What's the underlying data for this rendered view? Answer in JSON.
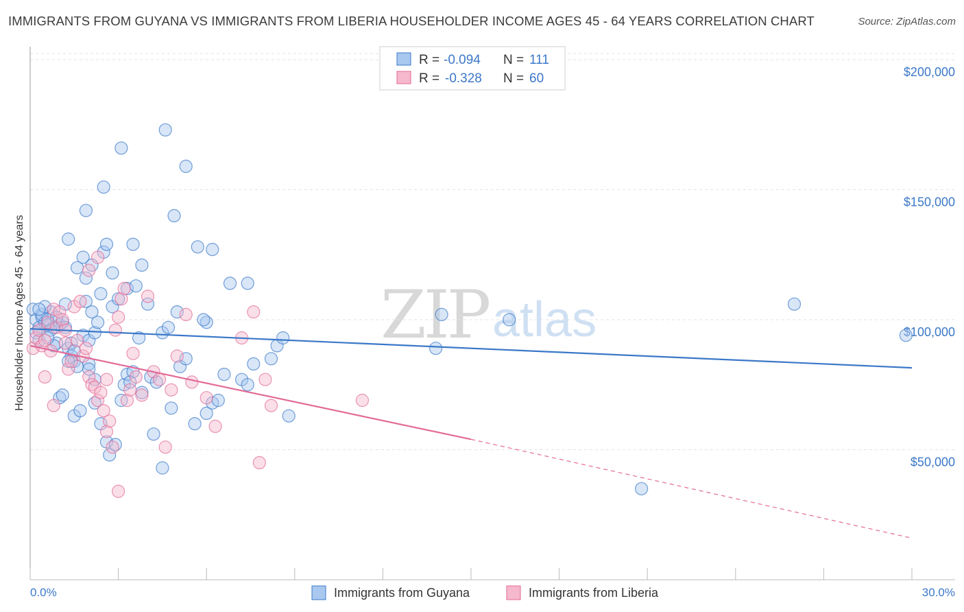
{
  "title": "IMMIGRANTS FROM GUYANA VS IMMIGRANTS FROM LIBERIA HOUSEHOLDER INCOME AGES 45 - 64 YEARS CORRELATION CHART",
  "source": "Source: ZipAtlas.com",
  "watermark": {
    "zip": "ZIP",
    "atlas": "atlas"
  },
  "colors": {
    "blue": "#3b78c8",
    "blue_fill": "#a9c8ef",
    "pink": "#e36a97",
    "pink_fill": "#f5b8cd",
    "grid": "#e3e3e3"
  },
  "legend": {
    "rows": [
      {
        "r_label": "R =",
        "r_value": "-0.094",
        "n_label": "N =",
        "n_value": "111"
      },
      {
        "r_label": "R =",
        "r_value": "-0.328",
        "n_label": "N =",
        "n_value": "60"
      }
    ]
  },
  "chart_data": {
    "type": "scatter",
    "title": "IMMIGRANTS FROM GUYANA VS IMMIGRANTS FROM LIBERIA HOUSEHOLDER INCOME AGES 45 - 64 YEARS CORRELATION CHART",
    "xlabel": "",
    "ylabel": "Householder Income Ages 45 - 64 years",
    "xlim": [
      0,
      30
    ],
    "ylim": [
      0,
      205000
    ],
    "x_tick_labels": [
      "0.0%",
      "30.0%"
    ],
    "y_ticks": [
      50000,
      100000,
      150000,
      200000
    ],
    "y_tick_labels": [
      "$50,000",
      "$100,000",
      "$150,000",
      "$200,000"
    ],
    "series": [
      {
        "name": "Immigrants from Guyana",
        "color": "#3b78c8",
        "r": -0.094,
        "n": 111,
        "trend": {
          "x": [
            0,
            30
          ],
          "y": [
            96500,
            81500
          ]
        },
        "points": [
          [
            0.1,
            104000
          ],
          [
            0.2,
            100000
          ],
          [
            0.3,
            97000
          ],
          [
            0.4,
            101000
          ],
          [
            0.5,
            99000
          ],
          [
            0.2,
            95000
          ],
          [
            0.3,
            92000
          ],
          [
            0.6,
            98000
          ],
          [
            0.7,
            103000
          ],
          [
            0.8,
            97000
          ],
          [
            0.4,
            102000
          ],
          [
            0.5,
            105000
          ],
          [
            0.6,
            100000
          ],
          [
            0.9,
            91000
          ],
          [
            1.0,
            98000
          ],
          [
            0.7,
            96000
          ],
          [
            0.8,
            90000
          ],
          [
            0.3,
            104000
          ],
          [
            1.1,
            99000
          ],
          [
            1.2,
            106000
          ],
          [
            1.3,
            89000
          ],
          [
            1.4,
            86000
          ],
          [
            1.5,
            84000
          ],
          [
            1.6,
            82000
          ],
          [
            1.8,
            94000
          ],
          [
            2.0,
            92000
          ],
          [
            2.2,
            95000
          ],
          [
            1.9,
            107000
          ],
          [
            2.1,
            103000
          ],
          [
            2.4,
            110000
          ],
          [
            2.8,
            105000
          ],
          [
            3.0,
            108000
          ],
          [
            3.3,
            112000
          ],
          [
            3.6,
            113000
          ],
          [
            4.0,
            106000
          ],
          [
            4.5,
            95000
          ],
          [
            5.0,
            103000
          ],
          [
            6.0,
            99000
          ],
          [
            6.8,
            114000
          ],
          [
            7.4,
            114000
          ],
          [
            1.0,
            70000
          ],
          [
            1.1,
            71000
          ],
          [
            1.3,
            84000
          ],
          [
            1.4,
            91000
          ],
          [
            1.5,
            63000
          ],
          [
            1.7,
            65000
          ],
          [
            2.0,
            83000
          ],
          [
            2.2,
            68000
          ],
          [
            2.4,
            60000
          ],
          [
            2.6,
            53000
          ],
          [
            2.7,
            48000
          ],
          [
            2.9,
            52000
          ],
          [
            3.1,
            69000
          ],
          [
            3.2,
            75000
          ],
          [
            3.3,
            79000
          ],
          [
            3.5,
            80000
          ],
          [
            3.7,
            93000
          ],
          [
            3.8,
            72000
          ],
          [
            4.1,
            78000
          ],
          [
            4.2,
            56000
          ],
          [
            4.3,
            76000
          ],
          [
            4.5,
            43000
          ],
          [
            4.8,
            66000
          ],
          [
            5.1,
            82000
          ],
          [
            5.3,
            85000
          ],
          [
            5.6,
            60000
          ],
          [
            6.0,
            64000
          ],
          [
            6.2,
            68000
          ],
          [
            6.4,
            69000
          ],
          [
            6.6,
            79000
          ],
          [
            7.2,
            77000
          ],
          [
            7.4,
            75000
          ],
          [
            7.6,
            83000
          ],
          [
            8.2,
            85000
          ],
          [
            8.4,
            90000
          ],
          [
            8.6,
            93000
          ],
          [
            8.8,
            63000
          ],
          [
            1.9,
            116000
          ],
          [
            1.6,
            120000
          ],
          [
            1.8,
            124000
          ],
          [
            2.1,
            121000
          ],
          [
            2.5,
            126000
          ],
          [
            2.6,
            129000
          ],
          [
            2.8,
            118000
          ],
          [
            3.5,
            129000
          ],
          [
            3.8,
            121000
          ],
          [
            5.7,
            128000
          ],
          [
            6.2,
            127000
          ],
          [
            1.3,
            131000
          ],
          [
            1.9,
            142000
          ],
          [
            2.5,
            151000
          ],
          [
            3.1,
            166000
          ],
          [
            4.6,
            173000
          ],
          [
            5.3,
            159000
          ],
          [
            4.9,
            140000
          ],
          [
            14.0,
            102000
          ],
          [
            16.3,
            100000
          ],
          [
            26.0,
            106000
          ],
          [
            29.8,
            94000
          ],
          [
            13.8,
            89000
          ],
          [
            20.8,
            35000
          ],
          [
            0.9,
            101000
          ],
          [
            1.2,
            97000
          ],
          [
            0.6,
            93000
          ],
          [
            2.3,
            99000
          ],
          [
            4.7,
            97000
          ],
          [
            1.5,
            88000
          ],
          [
            3.4,
            76000
          ],
          [
            2.2,
            77000
          ],
          [
            2.0,
            81000
          ],
          [
            5.9,
            100000
          ]
        ]
      },
      {
        "name": "Immigrants from Liberia",
        "color": "#e36a97",
        "r": -0.328,
        "n": 60,
        "trend": {
          "x": [
            0,
            15
          ],
          "y": [
            90000,
            54000
          ]
        },
        "trend_dashed": {
          "x": [
            15,
            30
          ],
          "y": [
            54000,
            16000
          ]
        },
        "points": [
          [
            0.1,
            89000
          ],
          [
            0.2,
            93000
          ],
          [
            0.3,
            96000
          ],
          [
            0.4,
            90000
          ],
          [
            0.5,
            92000
          ],
          [
            0.6,
            99000
          ],
          [
            0.7,
            88000
          ],
          [
            0.8,
            104000
          ],
          [
            0.9,
            97000
          ],
          [
            1.0,
            103000
          ],
          [
            1.1,
            100000
          ],
          [
            1.2,
            96000
          ],
          [
            1.3,
            81000
          ],
          [
            1.4,
            84000
          ],
          [
            1.5,
            105000
          ],
          [
            1.6,
            92000
          ],
          [
            1.7,
            107000
          ],
          [
            1.8,
            86000
          ],
          [
            1.9,
            89000
          ],
          [
            2.0,
            78000
          ],
          [
            2.1,
            75000
          ],
          [
            2.2,
            74000
          ],
          [
            2.3,
            69000
          ],
          [
            2.4,
            72000
          ],
          [
            2.5,
            65000
          ],
          [
            2.6,
            57000
          ],
          [
            2.7,
            61000
          ],
          [
            2.8,
            51000
          ],
          [
            2.9,
            96000
          ],
          [
            3.0,
            101000
          ],
          [
            3.1,
            108000
          ],
          [
            3.2,
            112000
          ],
          [
            3.3,
            69000
          ],
          [
            3.4,
            73000
          ],
          [
            3.5,
            87000
          ],
          [
            3.6,
            78000
          ],
          [
            3.8,
            71000
          ],
          [
            4.0,
            109000
          ],
          [
            4.2,
            80000
          ],
          [
            4.4,
            77000
          ],
          [
            4.6,
            51000
          ],
          [
            4.8,
            73000
          ],
          [
            5.0,
            86000
          ],
          [
            5.3,
            102000
          ],
          [
            5.5,
            76000
          ],
          [
            6.0,
            70000
          ],
          [
            6.3,
            59000
          ],
          [
            7.2,
            93000
          ],
          [
            7.6,
            103000
          ],
          [
            7.8,
            45000
          ],
          [
            8.0,
            77000
          ],
          [
            8.2,
            67000
          ],
          [
            11.3,
            69000
          ],
          [
            2.0,
            119000
          ],
          [
            2.3,
            124000
          ],
          [
            0.5,
            78000
          ],
          [
            0.8,
            67000
          ],
          [
            3.0,
            34000
          ],
          [
            2.6,
            77000
          ],
          [
            1.2,
            91000
          ]
        ]
      }
    ]
  },
  "axis": {
    "ylabel": "Householder Income Ages 45 - 64 years",
    "x_left": "0.0%",
    "x_right": "30.0%",
    "y_labels": [
      "$50,000",
      "$100,000",
      "$150,000",
      "$200,000"
    ]
  },
  "bottom_legend": [
    "Immigrants from Guyana",
    "Immigrants from Liberia"
  ]
}
